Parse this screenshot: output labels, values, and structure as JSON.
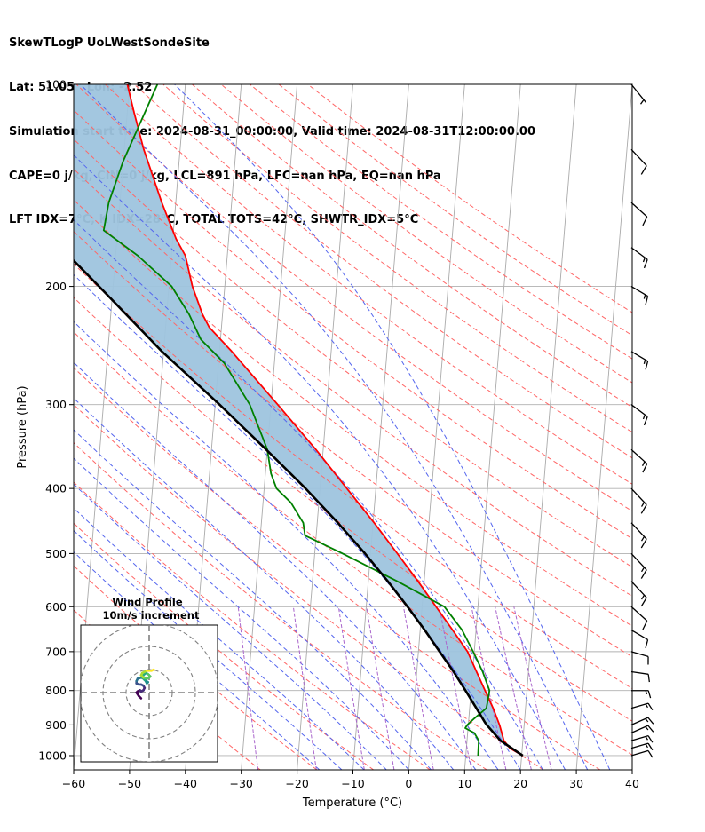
{
  "header": {
    "line1": "SkewTLogP UoLWestSondeSite",
    "line2": "Lat: 51.05   Lon: -2.52",
    "line3": "Simulation start time: 2024-08-31_00:00:00, Valid time: 2024-08-31T12:00:00.00",
    "line4": "CAPE=0 j/kg, CIN=0 j/kg, LCL=891 hPa, LFC=nan hPa, EQ=nan hPa",
    "line5": "LFT IDX=7°C, K IDX=28°C, TOTAL TOTS=42°C, SHWTR_IDX=5°C"
  },
  "chart_data": {
    "type": "line",
    "xlabel": "Temperature (°C)",
    "ylabel": "Pressure (hPa)",
    "xlim": [
      -60,
      40
    ],
    "ylim": [
      1050,
      100
    ],
    "yscale": "log",
    "grid": true,
    "x_ticks": [
      "−60",
      "−50",
      "−40",
      "−30",
      "−20",
      "−10",
      "0",
      "10",
      "20",
      "30",
      "40"
    ],
    "x_tick_values": [
      -60,
      -50,
      -40,
      -30,
      -20,
      -10,
      0,
      10,
      20,
      30,
      40
    ],
    "y_ticks": [
      "100",
      "200",
      "300",
      "400",
      "500",
      "600",
      "700",
      "800",
      "900",
      "1000"
    ],
    "y_tick_values": [
      100,
      200,
      300,
      400,
      500,
      600,
      700,
      800,
      900,
      1000
    ],
    "colors": {
      "temperature": "#ff0000",
      "dewpoint": "#008000",
      "parcel": "#000000",
      "cape_fill": "#9ec4de",
      "dry_adiabat": "#ff6666",
      "moist_adiabat": "#5566ee",
      "mixing_ratio": "#aa66cc",
      "isotherm": "#aaaaaa"
    },
    "series": [
      {
        "role": "temperature",
        "pressure": [
          1000,
          975,
          950,
          925,
          900,
          850,
          800,
          750,
          700,
          650,
          600,
          550,
          500,
          450,
          400,
          350,
          300,
          250,
          230,
          220,
          200,
          180,
          170,
          150,
          125,
          110,
          100
        ],
        "temp": [
          20.2,
          17.8,
          16.6,
          16.1,
          15.6,
          14.2,
          12.5,
          10.7,
          8.8,
          5.8,
          2.5,
          -1.1,
          -5.2,
          -9.8,
          -15.2,
          -21.3,
          -28.8,
          -37.8,
          -42.2,
          -43.6,
          -45.8,
          -47.5,
          -49.4,
          -52.5,
          -56.5,
          -58.8,
          -60.4
        ]
      },
      {
        "role": "dewpoint",
        "pressure": [
          1000,
          950,
          925,
          910,
          900,
          880,
          850,
          800,
          750,
          700,
          650,
          600,
          550,
          500,
          470,
          450,
          420,
          400,
          380,
          350,
          300,
          260,
          240,
          220,
          200,
          180,
          165,
          150,
          130,
          100
        ],
        "temp": [
          12.2,
          12.1,
          11.2,
          9.5,
          9.8,
          11.0,
          13.0,
          13.3,
          11.8,
          9.8,
          7.5,
          4.0,
          -4.8,
          -15.0,
          -22.0,
          -22.5,
          -25.0,
          -27.8,
          -29.0,
          -30.0,
          -33.8,
          -39.0,
          -43.5,
          -46.0,
          -49.5,
          -56.0,
          -62.5,
          -62.0,
          -60.0,
          -55.0
        ]
      },
      {
        "role": "parcel",
        "pressure": [
          1000,
          950,
          900,
          891,
          850,
          800,
          750,
          700,
          650,
          600,
          550,
          500,
          450,
          400,
          350,
          300,
          250,
          200,
          150,
          100
        ],
        "temp": [
          20.2,
          16.0,
          13.3,
          12.9,
          11.2,
          9.0,
          6.6,
          3.8,
          0.8,
          -2.6,
          -6.5,
          -11.0,
          -16.3,
          -22.6,
          -30.2,
          -39.2,
          -50.3,
          -62.5,
          -78.5,
          -99.5
        ]
      }
    ],
    "inset": {
      "title_line1": "Wind Profile",
      "title_line2": "10m/s increment",
      "rings_ms": [
        10,
        20,
        30
      ],
      "hodograph_u": [
        -3.5,
        -4.5,
        -5.5,
        -5.0,
        -4.0,
        -3.5,
        -2.5,
        -2.0,
        -2.5,
        -3.5,
        -4.5,
        -5.5,
        -5.5,
        -5.0,
        -3.5,
        -2.0,
        -1.5,
        -1.0,
        -0.5,
        -2.0,
        -3.0,
        -2.5,
        -1.5,
        -0.5,
        0.5,
        0.0,
        -1.0,
        -2.5,
        -3.5,
        -3.0,
        -2.0,
        -1.0,
        0.0,
        1.0,
        2.0
      ],
      "hodograph_v": [
        -2.5,
        -1.5,
        0.0,
        0.5,
        1.0,
        0.5,
        1.0,
        2.0,
        3.0,
        3.5,
        3.5,
        4.0,
        5.0,
        6.0,
        6.5,
        6.0,
        5.0,
        4.0,
        4.5,
        5.5,
        6.5,
        7.5,
        8.5,
        8.0,
        7.0,
        6.5,
        6.0,
        6.5,
        7.5,
        8.5,
        9.0,
        9.5,
        9.5,
        9.5,
        10.0
      ]
    },
    "wind_barbs": {
      "pressure": [
        1000,
        975,
        950,
        925,
        900,
        850,
        800,
        750,
        700,
        650,
        600,
        550,
        500,
        450,
        400,
        350,
        300,
        250,
        200,
        175,
        150,
        125,
        100
      ],
      "speed_kt": [
        10,
        15,
        15,
        15,
        15,
        15,
        15,
        10,
        10,
        10,
        10,
        15,
        15,
        15,
        15,
        15,
        15,
        15,
        15,
        15,
        10,
        10,
        5
      ],
      "dir_deg": [
        280,
        280,
        280,
        285,
        285,
        280,
        270,
        265,
        260,
        250,
        240,
        235,
        235,
        235,
        235,
        240,
        245,
        250,
        250,
        245,
        240,
        235,
        230
      ]
    }
  }
}
